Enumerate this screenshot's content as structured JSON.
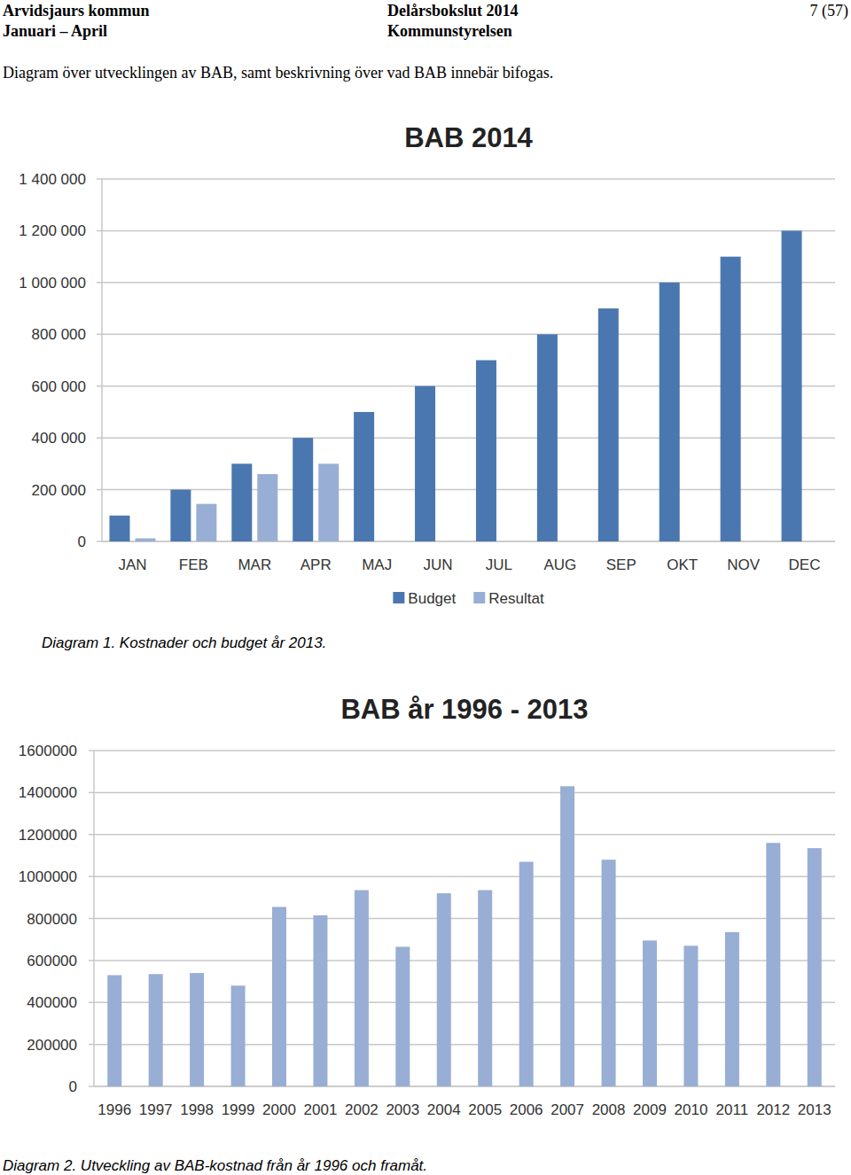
{
  "header": {
    "organization": "Arvidsjaurs kommun",
    "period": "Januari – April",
    "report": "Delårsbokslut 2014",
    "unit": "Kommunstyrelsen",
    "page": "7 (57)"
  },
  "intro": "Diagram över utvecklingen av BAB, samt beskrivning över vad BAB innebär bifogas.",
  "captions": [
    "Diagram 1. Kostnader och budget år 2013.",
    "Diagram 2. Utveckling av BAB-kostnad från år 1996 och framåt."
  ],
  "chart_data": [
    {
      "type": "bar",
      "title": "BAB 2014",
      "categories": [
        "JAN",
        "FEB",
        "MAR",
        "APR",
        "MAJ",
        "JUN",
        "JUL",
        "AUG",
        "SEP",
        "OKT",
        "NOV",
        "DEC"
      ],
      "series": [
        {
          "name": "Budget",
          "color": "#4a77b0",
          "values": [
            100000,
            200000,
            300000,
            400000,
            500000,
            600000,
            700000,
            800000,
            900000,
            1000000,
            1100000,
            1200000
          ]
        },
        {
          "name": "Resultat",
          "color": "#98aed4",
          "values": [
            12000,
            145000,
            260000,
            300000,
            null,
            null,
            null,
            null,
            null,
            null,
            null,
            null
          ]
        }
      ],
      "ylim": [
        0,
        1400000
      ],
      "yticks": [
        {
          "value": 0,
          "label": "0"
        },
        {
          "value": 200000,
          "label": "200 000"
        },
        {
          "value": 400000,
          "label": "400 000"
        },
        {
          "value": 600000,
          "label": "600 000"
        },
        {
          "value": 800000,
          "label": "800 000"
        },
        {
          "value": 1000000,
          "label": "1 000 000"
        },
        {
          "value": 1200000,
          "label": "1 200 000"
        },
        {
          "value": 1400000,
          "label": "1 400 000"
        }
      ],
      "grid": true,
      "legend": "bottom"
    },
    {
      "type": "bar",
      "title": "BAB år 1996 - 2013",
      "categories": [
        "1996",
        "1997",
        "1998",
        "1999",
        "2000",
        "2001",
        "2002",
        "2003",
        "2004",
        "2005",
        "2006",
        "2007",
        "2008",
        "2009",
        "2010",
        "2011",
        "2012",
        "2013"
      ],
      "values": [
        530000,
        535000,
        540000,
        480000,
        855000,
        815000,
        935000,
        665000,
        920000,
        935000,
        1070000,
        1430000,
        1080000,
        695000,
        670000,
        735000,
        1160000,
        1135000
      ],
      "color": "#98aed4",
      "ylim": [
        0,
        1600000
      ],
      "yticks": [
        0,
        200000,
        400000,
        600000,
        800000,
        1000000,
        1200000,
        1400000,
        1600000
      ],
      "grid": true
    }
  ]
}
